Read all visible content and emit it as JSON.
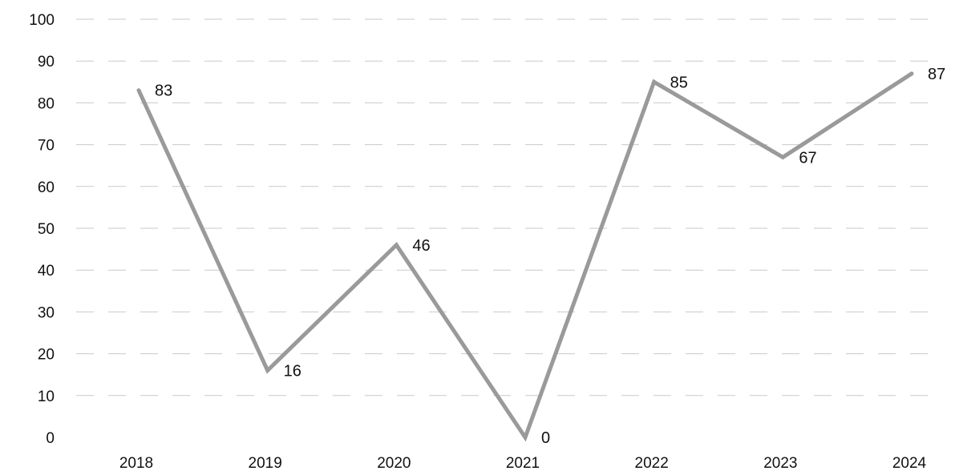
{
  "chart_data": {
    "type": "line",
    "title": "",
    "xlabel": "",
    "ylabel": "",
    "categories": [
      "2018",
      "2019",
      "2020",
      "2021",
      "2022",
      "2023",
      "2024"
    ],
    "series": [
      {
        "values": [
          83,
          16,
          46,
          0,
          85,
          67,
          87
        ]
      }
    ],
    "ylim": [
      0,
      100
    ],
    "yticks": [
      "0",
      "10",
      "20",
      "30",
      "40",
      "50",
      "60",
      "70",
      "80",
      "90",
      "100"
    ],
    "data_labels": [
      "83",
      "16",
      "46",
      "0",
      "85",
      "67",
      "87"
    ],
    "grid": true,
    "legend": "none",
    "colors": {
      "line": "#9a9a9a",
      "text": "#111111",
      "grid": "#c9c9c9"
    }
  }
}
